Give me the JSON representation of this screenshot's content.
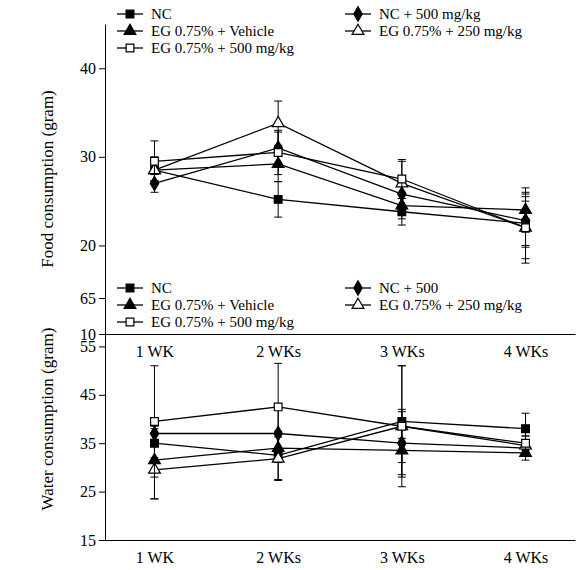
{
  "chart_data": [
    {
      "type": "line",
      "y_label": "Food consumption (gram)",
      "categories": [
        "1 WK",
        "2 WKs",
        "3 WKs",
        "4 WKs"
      ],
      "ylim": [
        10,
        45
      ],
      "yticks": [
        10,
        20,
        30,
        40
      ],
      "series": [
        {
          "name": "NC",
          "color": "#000000",
          "marker": "square",
          "values": [
            28.5,
            25.2,
            23.8,
            22.5
          ],
          "errors": [
            1.2,
            2.0,
            1.5,
            2.5
          ]
        },
        {
          "name": "NC + 500 mg/kg",
          "color": "#000000",
          "marker": "diamond",
          "values": [
            27.0,
            31.0,
            25.8,
            22.8
          ],
          "errors": [
            1.0,
            1.8,
            1.5,
            3.0
          ]
        },
        {
          "name": "EG 0.75% + Vehicle",
          "color": "#000000",
          "marker": "triangle",
          "values": [
            28.5,
            29.2,
            24.5,
            24.0
          ],
          "errors": [
            1.2,
            2.0,
            1.5,
            2.5
          ]
        },
        {
          "name": "EG 0.75% + 250 mg/kg",
          "color": "#000000",
          "marker": "triangle-open",
          "values": [
            28.5,
            33.8,
            27.0,
            22.0
          ],
          "errors": [
            1.5,
            2.5,
            2.5,
            4.0
          ]
        },
        {
          "name": "EG 0.75% + 500 mg/kg",
          "color": "#000000",
          "marker": "square-open",
          "values": [
            29.5,
            30.5,
            27.5,
            22.0
          ],
          "errors": [
            2.3,
            2.5,
            2.2,
            3.5
          ]
        }
      ]
    },
    {
      "type": "line",
      "y_label": "Water consumption (gram)",
      "categories": [
        "1 WK",
        "2 WKs",
        "3 WKs",
        "4 WKs"
      ],
      "ylim": [
        15,
        65
      ],
      "yticks": [
        15,
        25,
        35,
        45,
        55,
        65
      ],
      "series": [
        {
          "name": "NC",
          "color": "#000000",
          "marker": "square",
          "values": [
            35.0,
            32.5,
            39.5,
            38.0
          ],
          "errors": [
            3.0,
            5.0,
            11.5,
            3.2
          ]
        },
        {
          "name": "NC + 500",
          "color": "#000000",
          "marker": "diamond",
          "values": [
            37.0,
            37.0,
            35.0,
            34.0
          ],
          "errors": [
            1.5,
            5.0,
            6.5,
            1.5
          ]
        },
        {
          "name": "EG 0.75% + Vehicle",
          "color": "#000000",
          "marker": "triangle",
          "values": [
            31.5,
            34.0,
            33.5,
            33.0
          ],
          "errors": [
            8.0,
            3.0,
            2.5,
            1.5
          ]
        },
        {
          "name": "EG 0.75% + 250 mg/kg",
          "color": "#000000",
          "marker": "triangle-open",
          "values": [
            29.5,
            31.8,
            38.5,
            34.5
          ],
          "errors": [
            6.0,
            4.5,
            12.5,
            2.0
          ]
        },
        {
          "name": "EG 0.75% + 500 mg/kg",
          "color": "#000000",
          "marker": "square-open",
          "values": [
            39.5,
            42.5,
            38.5,
            35.0
          ],
          "errors": [
            11.5,
            9.0,
            3.5,
            1.5
          ]
        }
      ]
    }
  ]
}
